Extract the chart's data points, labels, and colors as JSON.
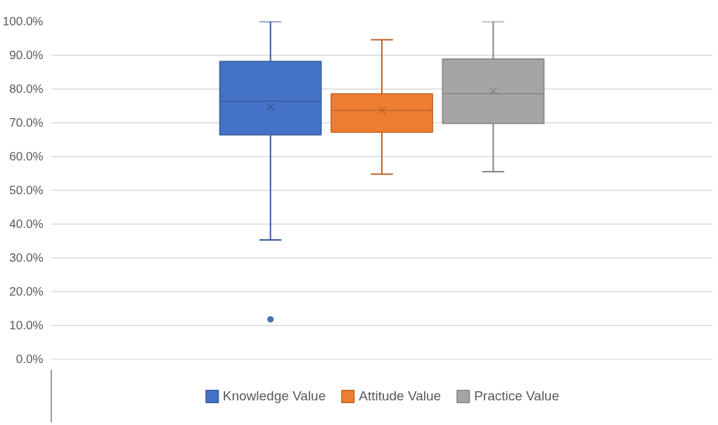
{
  "chart_data": {
    "type": "box",
    "categories": [
      null
    ],
    "series": [
      {
        "name": "Knowledge Value",
        "color": "#4472c4",
        "boxes": [
          {
            "low": 35.3,
            "q1": 66.4,
            "median": 76.4,
            "q3": 88.2,
            "high": 100,
            "mean": 74.7,
            "outliers": [
              11.8
            ]
          }
        ]
      },
      {
        "name": "Attitude Value",
        "color": "#ed7d31",
        "boxes": [
          {
            "low": 54.8,
            "q1": 67.2,
            "median": 73.7,
            "q3": 78.6,
            "high": 94.6,
            "mean": 73.7
          }
        ]
      },
      {
        "name": "Practice Value",
        "color": "#a5a5a5",
        "boxes": [
          {
            "low": 55.5,
            "q1": 69.8,
            "median": 78.6,
            "q3": 88.9,
            "high": 100,
            "mean": 79.4
          }
        ]
      }
    ],
    "ylim": [
      0,
      100
    ],
    "yticks": [
      {
        "value": 0,
        "label": "0.0%"
      },
      {
        "value": 10,
        "label": "10.0%"
      },
      {
        "value": 20,
        "label": "20.0%"
      },
      {
        "value": 30,
        "label": "30.0%"
      },
      {
        "value": 40,
        "label": "40.0%"
      },
      {
        "value": 50,
        "label": "50.0%"
      },
      {
        "value": 60,
        "label": "60.0%"
      },
      {
        "value": 70,
        "label": "70.0%"
      },
      {
        "value": 80,
        "label": "80.0%"
      },
      {
        "value": 90,
        "label": "90.0%"
      },
      {
        "value": 100,
        "label": "100.0%"
      }
    ],
    "grid": "y",
    "legend": "bottom",
    "marker": "circle"
  }
}
